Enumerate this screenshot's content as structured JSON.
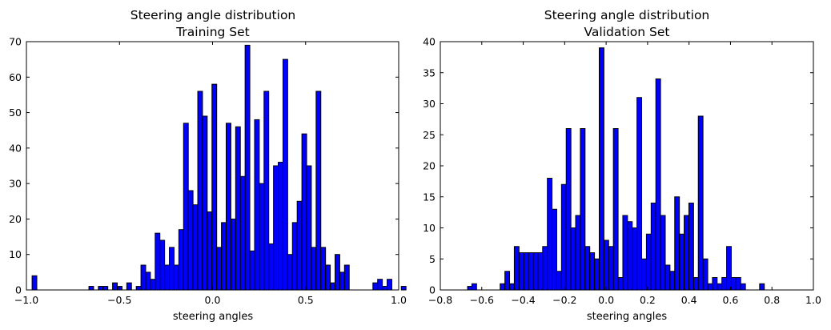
{
  "chart_data": [
    {
      "type": "bar",
      "title": "Steering angle distribution",
      "subtitle": "Training Set",
      "xlabel": "steering angles",
      "ylabel": "",
      "xlim": [
        -1.0,
        1.0
      ],
      "ylim": [
        0,
        70
      ],
      "x_tick_values": [
        -1.0,
        -0.5,
        0.0,
        0.5,
        1.0
      ],
      "x_tick_labels": [
        "−1.0",
        "−0.5",
        "0.0",
        "0.5",
        "1.0"
      ],
      "y_tick_values": [
        0,
        10,
        20,
        30,
        40,
        50,
        60,
        70
      ],
      "y_tick_labels": [
        "0",
        "10",
        "20",
        "30",
        "40",
        "50",
        "60",
        "70"
      ],
      "bin_start": -0.9695,
      "bin_width": 0.02543,
      "values": [
        4,
        0,
        0,
        0,
        0,
        0,
        0,
        0,
        0,
        0,
        0,
        0,
        1,
        0,
        1,
        1,
        0,
        2,
        1,
        0,
        2,
        0,
        1,
        7,
        5,
        3,
        16,
        14,
        7,
        12,
        7,
        17,
        47,
        28,
        24,
        56,
        49,
        22,
        58,
        12,
        19,
        47,
        20,
        46,
        32,
        69,
        11,
        48,
        30,
        56,
        13,
        35,
        36,
        65,
        10,
        19,
        25,
        44,
        35,
        12,
        56,
        12,
        7,
        2,
        10,
        5,
        7,
        0,
        0,
        0,
        0,
        0,
        2,
        3,
        1,
        3,
        0,
        0,
        1,
        0,
        0,
        0,
        0,
        0,
        0,
        0,
        0,
        0,
        0,
        0,
        0,
        0,
        1
      ],
      "bar_color": "#0000ff",
      "grid": false,
      "legend": "none"
    },
    {
      "type": "bar",
      "title": "Steering angle distribution",
      "subtitle": "Validation Set",
      "xlabel": "steering angles",
      "ylabel": "",
      "xlim": [
        -0.8,
        1.0
      ],
      "ylim": [
        0,
        40
      ],
      "x_tick_values": [
        -0.8,
        -0.6,
        -0.4,
        -0.2,
        0.0,
        0.2,
        0.4,
        0.6,
        0.8,
        1.0
      ],
      "x_tick_labels": [
        "−0.8",
        "−0.6",
        "−0.4",
        "−0.2",
        "0.0",
        "0.2",
        "0.4",
        "0.6",
        "0.8",
        "1.0"
      ],
      "y_tick_values": [
        0,
        5,
        10,
        15,
        20,
        25,
        30,
        35,
        40
      ],
      "y_tick_labels": [
        "0",
        "5",
        "10",
        "15",
        "20",
        "25",
        "30",
        "35",
        "40"
      ],
      "bin_start": -0.6478,
      "bin_width": 0.02276,
      "values": [
        1,
        0,
        0,
        0,
        0,
        0,
        1,
        3,
        1,
        7,
        6,
        6,
        6,
        6,
        6,
        7,
        18,
        13,
        3,
        17,
        26,
        10,
        12,
        26,
        7,
        6,
        5,
        39,
        8,
        7,
        26,
        2,
        12,
        11,
        10,
        31,
        5,
        9,
        14,
        34,
        12,
        4,
        3,
        15,
        9,
        12,
        14,
        2,
        28,
        5,
        1,
        2,
        1,
        2,
        7,
        2,
        2,
        1,
        0,
        0,
        0,
        1,
        0,
        0,
        0,
        0,
        0,
        0,
        0,
        0,
        0,
        0,
        0,
        0,
        0,
        0,
        0,
        0,
        0,
        0,
        0,
        0,
        0,
        0,
        0,
        0,
        0,
        0,
        0,
        0,
        0,
        0,
        0,
        1
      ],
      "bar_color": "#0000ff",
      "grid": false,
      "legend": "none"
    }
  ]
}
